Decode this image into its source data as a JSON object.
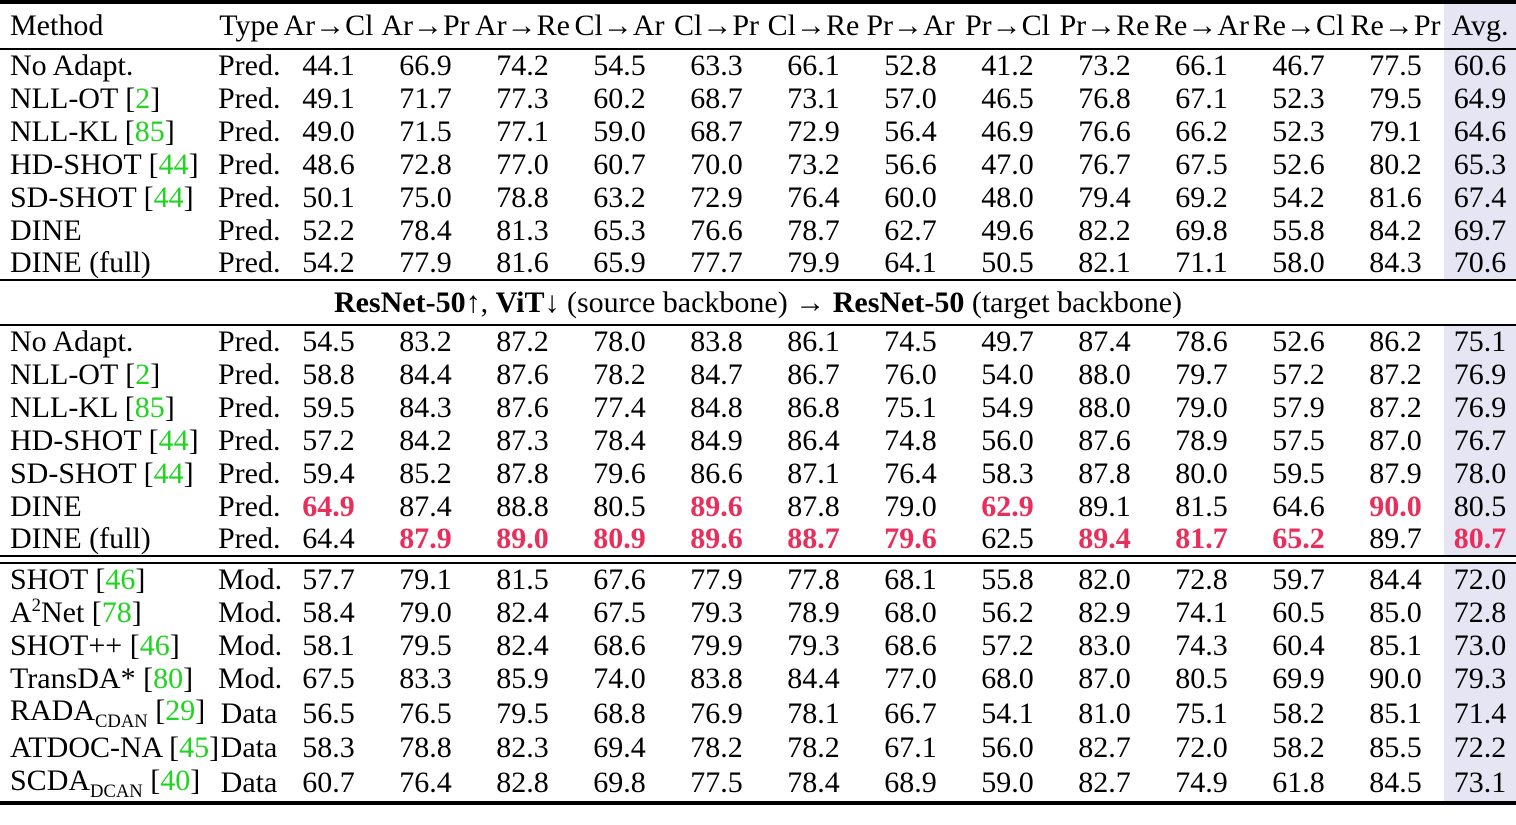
{
  "colors": {
    "avg_column_bg": "#e5e5f4",
    "best_value_red": "#ea2e5c",
    "citation_green": "#21d421"
  },
  "table": {
    "headers": [
      "Method",
      "Type",
      "Ar→Cl",
      "Ar→Pr",
      "Ar→Re",
      "Cl→Ar",
      "Cl→Pr",
      "Cl→Re",
      "Pr→Ar",
      "Pr→Cl",
      "Pr→Re",
      "Re→Ar",
      "Re→Cl",
      "Re→Pr",
      "Avg."
    ],
    "divider": {
      "segments": [
        {
          "text": "ResNet-50",
          "bold": true
        },
        {
          "text": "↑, ",
          "bold": false
        },
        {
          "text": "ViT",
          "bold": true
        },
        {
          "text": "↓ (source backbone) → ",
          "bold": false
        },
        {
          "text": "ResNet-50",
          "bold": true
        },
        {
          "text": " (target backbone)",
          "bold": false
        }
      ]
    },
    "sections": [
      {
        "rows": [
          {
            "method": {
              "pre": "No Adapt."
            },
            "type": "Pred.",
            "values": [
              "44.1",
              "66.9",
              "74.2",
              "54.5",
              "63.3",
              "66.1",
              "52.8",
              "41.2",
              "73.2",
              "66.1",
              "46.7",
              "77.5",
              "60.6"
            ],
            "red": []
          },
          {
            "method": {
              "pre": "NLL-OT",
              "cite": "2"
            },
            "type": "Pred.",
            "values": [
              "49.1",
              "71.7",
              "77.3",
              "60.2",
              "68.7",
              "73.1",
              "57.0",
              "46.5",
              "76.8",
              "67.1",
              "52.3",
              "79.5",
              "64.9"
            ],
            "red": []
          },
          {
            "method": {
              "pre": "NLL-KL",
              "cite": "85"
            },
            "type": "Pred.",
            "values": [
              "49.0",
              "71.5",
              "77.1",
              "59.0",
              "68.7",
              "72.9",
              "56.4",
              "46.9",
              "76.6",
              "66.2",
              "52.3",
              "79.1",
              "64.6"
            ],
            "red": []
          },
          {
            "method": {
              "pre": "HD-SHOT",
              "cite": "44"
            },
            "type": "Pred.",
            "values": [
              "48.6",
              "72.8",
              "77.0",
              "60.7",
              "70.0",
              "73.2",
              "56.6",
              "47.0",
              "76.7",
              "67.5",
              "52.6",
              "80.2",
              "65.3"
            ],
            "red": []
          },
          {
            "method": {
              "pre": "SD-SHOT",
              "cite": "44"
            },
            "type": "Pred.",
            "values": [
              "50.1",
              "75.0",
              "78.8",
              "63.2",
              "72.9",
              "76.4",
              "60.0",
              "48.0",
              "79.4",
              "69.2",
              "54.2",
              "81.6",
              "67.4"
            ],
            "red": []
          },
          {
            "method": {
              "pre": "DINE"
            },
            "type": "Pred.",
            "values": [
              "52.2",
              "78.4",
              "81.3",
              "65.3",
              "76.6",
              "78.7",
              "62.7",
              "49.6",
              "82.2",
              "69.8",
              "55.8",
              "84.2",
              "69.7"
            ],
            "red": []
          },
          {
            "method": {
              "pre": "DINE (full)"
            },
            "type": "Pred.",
            "values": [
              "54.2",
              "77.9",
              "81.6",
              "65.9",
              "77.7",
              "79.9",
              "64.1",
              "50.5",
              "82.1",
              "71.1",
              "58.0",
              "84.3",
              "70.6"
            ],
            "red": []
          }
        ]
      },
      {
        "rows": [
          {
            "method": {
              "pre": "No Adapt."
            },
            "type": "Pred.",
            "values": [
              "54.5",
              "83.2",
              "87.2",
              "78.0",
              "83.8",
              "86.1",
              "74.5",
              "49.7",
              "87.4",
              "78.6",
              "52.6",
              "86.2",
              "75.1"
            ],
            "red": []
          },
          {
            "method": {
              "pre": "NLL-OT",
              "cite": "2"
            },
            "type": "Pred.",
            "values": [
              "58.8",
              "84.4",
              "87.6",
              "78.2",
              "84.7",
              "86.7",
              "76.0",
              "54.0",
              "88.0",
              "79.7",
              "57.2",
              "87.2",
              "76.9"
            ],
            "red": []
          },
          {
            "method": {
              "pre": "NLL-KL",
              "cite": "85"
            },
            "type": "Pred.",
            "values": [
              "59.5",
              "84.3",
              "87.6",
              "77.4",
              "84.8",
              "86.8",
              "75.1",
              "54.9",
              "88.0",
              "79.0",
              "57.9",
              "87.2",
              "76.9"
            ],
            "red": []
          },
          {
            "method": {
              "pre": "HD-SHOT",
              "cite": "44"
            },
            "type": "Pred.",
            "values": [
              "57.2",
              "84.2",
              "87.3",
              "78.4",
              "84.9",
              "86.4",
              "74.8",
              "56.0",
              "87.6",
              "78.9",
              "57.5",
              "87.0",
              "76.7"
            ],
            "red": []
          },
          {
            "method": {
              "pre": "SD-SHOT",
              "cite": "44"
            },
            "type": "Pred.",
            "values": [
              "59.4",
              "85.2",
              "87.8",
              "79.6",
              "86.6",
              "87.1",
              "76.4",
              "58.3",
              "87.8",
              "80.0",
              "59.5",
              "87.9",
              "78.0"
            ],
            "red": []
          },
          {
            "method": {
              "pre": "DINE"
            },
            "type": "Pred.",
            "values": [
              "64.9",
              "87.4",
              "88.8",
              "80.5",
              "89.6",
              "87.8",
              "79.0",
              "62.9",
              "89.1",
              "81.5",
              "64.6",
              "90.0",
              "80.5"
            ],
            "red": [
              0,
              4,
              7,
              11
            ]
          },
          {
            "method": {
              "pre": "DINE (full)"
            },
            "type": "Pred.",
            "values": [
              "64.4",
              "87.9",
              "89.0",
              "80.9",
              "89.6",
              "88.7",
              "79.6",
              "62.5",
              "89.4",
              "81.7",
              "65.2",
              "89.7",
              "80.7"
            ],
            "red": [
              1,
              2,
              3,
              4,
              5,
              6,
              8,
              9,
              10,
              12
            ]
          }
        ]
      },
      {
        "rows": [
          {
            "method": {
              "pre": "SHOT",
              "cite": "46"
            },
            "type": "Mod.",
            "values": [
              "57.7",
              "79.1",
              "81.5",
              "67.6",
              "77.9",
              "77.8",
              "68.1",
              "55.8",
              "82.0",
              "72.8",
              "59.7",
              "84.4",
              "72.0"
            ],
            "red": []
          },
          {
            "method": {
              "pre": "A",
              "sup": "2",
              "post": "Net",
              "cite": "78"
            },
            "type": "Mod.",
            "values": [
              "58.4",
              "79.0",
              "82.4",
              "67.5",
              "79.3",
              "78.9",
              "68.0",
              "56.2",
              "82.9",
              "74.1",
              "60.5",
              "85.0",
              "72.8"
            ],
            "red": []
          },
          {
            "method": {
              "pre": "SHOT++",
              "cite": "46"
            },
            "type": "Mod.",
            "values": [
              "58.1",
              "79.5",
              "82.4",
              "68.6",
              "79.9",
              "79.3",
              "68.6",
              "57.2",
              "83.0",
              "74.3",
              "60.4",
              "85.1",
              "73.0"
            ],
            "red": []
          },
          {
            "method": {
              "pre": "TransDA*",
              "cite": "80"
            },
            "type": "Mod.",
            "values": [
              "67.5",
              "83.3",
              "85.9",
              "74.0",
              "83.8",
              "84.4",
              "77.0",
              "68.0",
              "87.0",
              "80.5",
              "69.9",
              "90.0",
              "79.3"
            ],
            "red": []
          },
          {
            "method": {
              "pre": "RADA",
              "sub": "CDAN",
              "cite": "29"
            },
            "type": "Data",
            "values": [
              "56.5",
              "76.5",
              "79.5",
              "68.8",
              "76.9",
              "78.1",
              "66.7",
              "54.1",
              "81.0",
              "75.1",
              "58.2",
              "85.1",
              "71.4"
            ],
            "red": []
          },
          {
            "method": {
              "pre": "ATDOC-NA",
              "cite": "45"
            },
            "type": "Data",
            "values": [
              "58.3",
              "78.8",
              "82.3",
              "69.4",
              "78.2",
              "78.2",
              "67.1",
              "56.0",
              "82.7",
              "72.0",
              "58.2",
              "85.5",
              "72.2"
            ],
            "red": []
          },
          {
            "method": {
              "pre": "SCDA",
              "sub": "DCAN",
              "cite": "40"
            },
            "type": "Data",
            "values": [
              "60.7",
              "76.4",
              "82.8",
              "69.8",
              "77.5",
              "78.4",
              "68.9",
              "59.0",
              "82.7",
              "74.9",
              "61.8",
              "84.5",
              "73.1"
            ],
            "red": []
          }
        ]
      }
    ]
  }
}
